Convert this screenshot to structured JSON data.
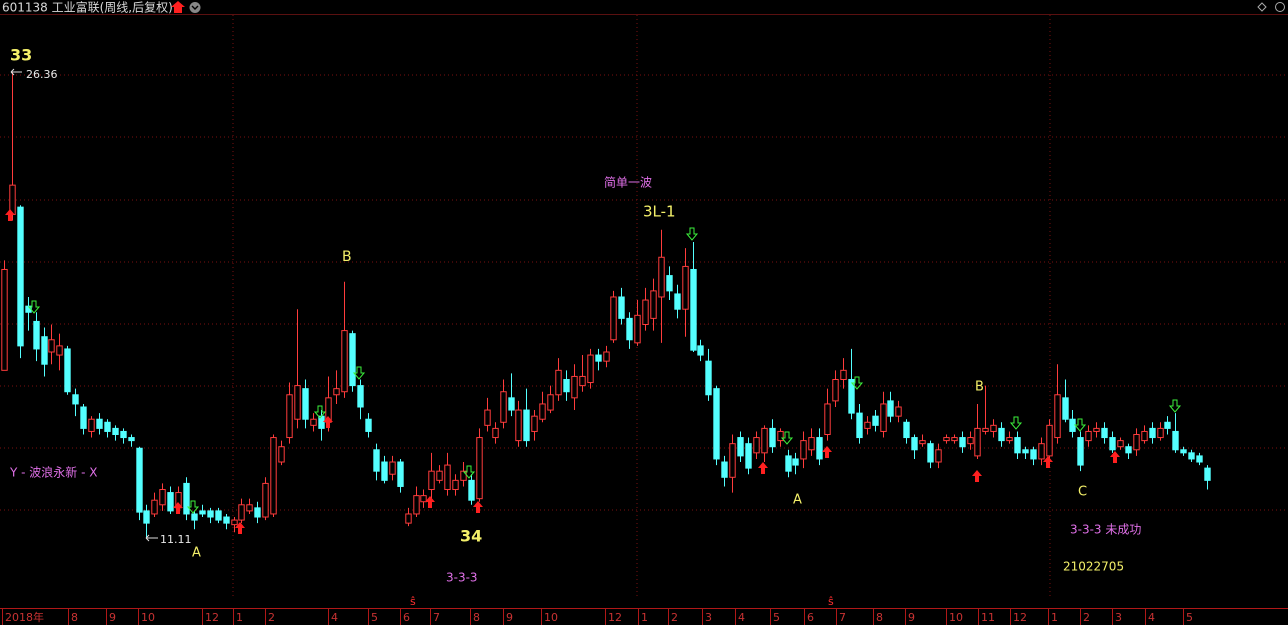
{
  "header": {
    "title": "601138 工业富联(周线,后复权)"
  },
  "chart_data": {
    "type": "candlestick",
    "up_color": "#ff3c3c",
    "down_color": "#54ffff",
    "ylim": [
      9.15,
      28.26
    ],
    "open": [
      16.6,
      21.7,
      21.94,
      18.7,
      18.2,
      17.7,
      17.2,
      17.1,
      17.3,
      15.8,
      15.4,
      14.6,
      15.0,
      14.9,
      14.7,
      14.6,
      14.4,
      14.05,
      12.0,
      11.9,
      12.2,
      12.6,
      12.1,
      12.9,
      11.9,
      12.0,
      12.0,
      12.0,
      11.8,
      11.55,
      11.7,
      12.0,
      12.1,
      11.8,
      11.9,
      13.6,
      14.4,
      15.0,
      16.0,
      14.8,
      15.1,
      14.9,
      15.8,
      15.9,
      17.8,
      16.1,
      15.0,
      14.0,
      13.6,
      13.2,
      13.6,
      11.6,
      11.9,
      12.3,
      12.7,
      13.0,
      12.7,
      12.7,
      13.0,
      13.0,
      12.4,
      14.8,
      14.4,
      14.9,
      15.7,
      14.3,
      15.3,
      14.6,
      15.0,
      15.3,
      15.8,
      16.3,
      15.7,
      16.1,
      16.2,
      17.1,
      16.9,
      17.6,
      19.0,
      18.3,
      17.5,
      18.1,
      18.3,
      19.0,
      19.7,
      19.1,
      18.6,
      19.9,
      17.4,
      16.9,
      16.0,
      13.6,
      13.1,
      14.4,
      14.2,
      13.9,
      13.9,
      14.7,
      14.3,
      13.8,
      13.7,
      13.7,
      14.0,
      14.4,
      14.5,
      15.6,
      16.3,
      16.3,
      15.2,
      14.7,
      15.1,
      14.6,
      15.6,
      15.1,
      14.9,
      14.4,
      14.2,
      14.2,
      13.6,
      14.3,
      14.3,
      14.4,
      14.2,
      13.8,
      14.6,
      14.6,
      14.7,
      14.3,
      14.4,
      14.0,
      14.0,
      13.7,
      13.8,
      14.4,
      15.7,
      15.0,
      14.4,
      14.3,
      14.6,
      14.7,
      14.4,
      14.1,
      14.1,
      14.0,
      14.3,
      14.7,
      14.4,
      14.9,
      14.6,
      14.0,
      13.9,
      13.8,
      13.4
    ],
    "close": [
      19.9,
      22.66,
      17.4,
      18.5,
      17.3,
      16.8,
      17.6,
      17.4,
      15.9,
      15.5,
      14.7,
      15.0,
      14.7,
      14.6,
      14.5,
      14.4,
      14.3,
      11.96,
      11.6,
      12.35,
      12.7,
      12.0,
      12.6,
      11.9,
      11.7,
      11.9,
      11.8,
      11.7,
      11.6,
      11.7,
      12.2,
      12.2,
      11.8,
      12.9,
      14.4,
      14.1,
      15.8,
      16.1,
      15.0,
      15.0,
      14.7,
      15.7,
      16.0,
      17.9,
      16.1,
      15.4,
      14.6,
      13.3,
      13.0,
      13.6,
      12.8,
      11.9,
      12.5,
      12.5,
      13.3,
      13.3,
      13.5,
      13.0,
      13.3,
      12.35,
      14.4,
      15.3,
      14.7,
      15.9,
      15.3,
      15.3,
      14.3,
      15.1,
      15.5,
      15.8,
      16.6,
      15.9,
      16.4,
      16.4,
      17.1,
      16.9,
      17.2,
      19.0,
      18.3,
      17.6,
      18.4,
      18.9,
      19.2,
      20.3,
      19.2,
      18.6,
      20.0,
      17.26,
      17.1,
      15.8,
      13.7,
      13.1,
      14.2,
      13.8,
      13.4,
      14.4,
      14.7,
      14.1,
      14.6,
      13.3,
      13.5,
      14.3,
      14.4,
      13.7,
      15.5,
      16.3,
      16.6,
      15.2,
      14.4,
      14.9,
      14.8,
      15.5,
      15.1,
      15.4,
      14.4,
      14.0,
      14.3,
      13.6,
      14.0,
      14.4,
      14.4,
      14.1,
      14.4,
      14.7,
      14.7,
      14.8,
      14.3,
      14.4,
      13.9,
      13.9,
      13.7,
      14.2,
      14.8,
      15.8,
      15.0,
      14.6,
      13.5,
      14.6,
      14.7,
      14.4,
      14.0,
      14.3,
      13.9,
      14.5,
      14.6,
      14.4,
      14.7,
      14.7,
      14.0,
      13.9,
      13.7,
      13.6,
      13.0
    ],
    "high": [
      20.2,
      26.36,
      22.0,
      19.0,
      18.5,
      18.0,
      18.1,
      17.8,
      17.4,
      16.0,
      15.5,
      15.1,
      15.2,
      15.0,
      14.8,
      14.7,
      14.5,
      14.1,
      12.2,
      12.6,
      12.9,
      12.8,
      12.8,
      13.1,
      12.0,
      12.2,
      12.1,
      12.1,
      11.9,
      11.8,
      12.4,
      12.4,
      12.3,
      13.1,
      14.5,
      14.3,
      16.2,
      18.6,
      16.3,
      15.2,
      15.3,
      16.4,
      16.6,
      19.5,
      17.9,
      16.3,
      15.2,
      14.2,
      13.8,
      13.8,
      13.7,
      12.1,
      12.8,
      12.7,
      13.9,
      13.5,
      13.9,
      13.2,
      13.6,
      13.2,
      14.7,
      15.7,
      14.9,
      16.3,
      16.5,
      15.6,
      16.0,
      15.3,
      15.9,
      16.1,
      17.0,
      16.6,
      16.8,
      17.1,
      17.3,
      17.3,
      17.4,
      19.2,
      19.3,
      18.5,
      18.9,
      19.3,
      19.6,
      21.2,
      20.0,
      19.4,
      20.6,
      20.8,
      17.6,
      17.3,
      16.1,
      13.8,
      14.5,
      14.6,
      14.4,
      14.6,
      14.8,
      15.0,
      14.7,
      14.0,
      13.9,
      14.6,
      14.7,
      14.7,
      16.0,
      16.6,
      17.0,
      17.3,
      15.5,
      15.1,
      15.3,
      15.9,
      15.9,
      15.6,
      15.0,
      14.5,
      14.5,
      14.3,
      14.2,
      14.5,
      14.5,
      14.6,
      14.6,
      15.5,
      16.1,
      15.0,
      14.9,
      14.6,
      14.6,
      14.1,
      14.1,
      14.4,
      15.0,
      16.8,
      16.3,
      15.3,
      14.6,
      14.8,
      14.9,
      14.9,
      14.6,
      14.4,
      14.2,
      14.7,
      14.8,
      14.9,
      14.9,
      15.1,
      15.2,
      14.1,
      14.0,
      13.9,
      13.5
    ],
    "low": [
      16.6,
      21.5,
      17.0,
      17.9,
      16.9,
      16.4,
      16.8,
      16.6,
      15.8,
      15.1,
      14.5,
      14.4,
      14.5,
      14.4,
      14.3,
      14.2,
      14.1,
      11.7,
      11.11,
      11.8,
      12.0,
      11.9,
      12.0,
      11.7,
      11.4,
      11.8,
      11.6,
      11.6,
      11.4,
      11.3,
      11.6,
      11.9,
      11.6,
      11.7,
      11.8,
      13.5,
      14.2,
      14.7,
      14.7,
      14.6,
      14.3,
      14.6,
      15.5,
      15.7,
      15.9,
      15.0,
      14.4,
      13.0,
      12.9,
      13.0,
      12.6,
      11.5,
      11.8,
      12.1,
      12.4,
      12.9,
      12.5,
      12.5,
      12.8,
      12.2,
      12.3,
      14.6,
      14.2,
      14.7,
      15.1,
      14.1,
      14.1,
      14.3,
      14.9,
      15.2,
      15.6,
      15.6,
      15.3,
      15.9,
      16.0,
      16.6,
      16.7,
      17.5,
      18.1,
      17.3,
      17.4,
      17.9,
      17.9,
      17.5,
      18.9,
      18.3,
      17.7,
      17.2,
      16.9,
      15.6,
      13.5,
      12.8,
      12.6,
      13.6,
      13.2,
      13.7,
      13.6,
      13.9,
      14.1,
      13.1,
      13.2,
      13.4,
      13.8,
      13.5,
      14.3,
      15.4,
      16.0,
      15.0,
      14.2,
      14.5,
      14.6,
      14.4,
      14.9,
      14.9,
      14.2,
      13.7,
      14.1,
      13.4,
      13.4,
      14.2,
      14.2,
      13.9,
      14.0,
      13.7,
      14.5,
      14.4,
      14.1,
      14.2,
      13.7,
      13.7,
      13.5,
      13.5,
      13.6,
      14.2,
      14.9,
      14.4,
      13.3,
      14.1,
      14.4,
      14.2,
      13.9,
      14.0,
      13.7,
      13.8,
      14.2,
      14.2,
      14.3,
      14.5,
      13.9,
      13.8,
      13.6,
      13.5,
      12.7
    ],
    "x_labels": [
      "2018年",
      "8",
      "9",
      "10",
      "12",
      "1",
      "2",
      "4",
      "5",
      "6",
      "7",
      "8",
      "9",
      "10",
      "12",
      "1",
      "2",
      "3",
      "4",
      "5",
      "6",
      "7",
      "8",
      "9",
      "10",
      "11",
      "12",
      "1",
      "2",
      "3",
      "4",
      "5"
    ],
    "split_marks": [
      "ŝ",
      "ŝ"
    ],
    "annotations": {
      "wave_33": 33,
      "high_label": 26.36,
      "low_label": 11.11,
      "a1": "A",
      "b1": "B",
      "wave_34": 34,
      "pattern1": "3-3-3",
      "simple_wave": "简单一波",
      "label_3l1": "3L-1",
      "side_note": "Y - 波浪永新 - X",
      "a2": "A",
      "b2": "B",
      "c2": "C",
      "pattern2": "3-3-3 未成功",
      "code": "21022705"
    }
  }
}
